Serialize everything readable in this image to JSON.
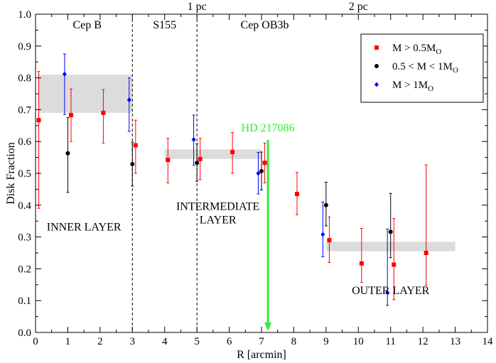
{
  "chart_data": {
    "type": "scatter",
    "xlabel": "R [arcmin]",
    "ylabel": "Disk Fraction",
    "xlim": [
      0,
      14
    ],
    "ylim": [
      0.0,
      1.0
    ],
    "xticks": [
      "0",
      "1",
      "2",
      "3",
      "4",
      "5",
      "6",
      "7",
      "8",
      "9",
      "10",
      "11",
      "12",
      "13",
      "14"
    ],
    "yticks": [
      "0.0",
      "0.1",
      "0.2",
      "0.3",
      "0.4",
      "0.5",
      "0.6",
      "0.7",
      "0.8",
      "0.9",
      "1.0"
    ],
    "top_labels": [
      {
        "text": "1 pc",
        "x": 5
      },
      {
        "text": "2 pc",
        "x": 10
      }
    ],
    "region_labels": [
      {
        "text": "Cep B",
        "x": 1.6
      },
      {
        "text": "S155",
        "x": 4.0
      },
      {
        "text": "Cep OB3b",
        "x": 7.1
      }
    ],
    "region_dividers": [
      3.0,
      5.0
    ],
    "layer_labels": [
      {
        "lines": [
          "INNER LAYER"
        ],
        "x": 1.5,
        "y": 0.32
      },
      {
        "lines": [
          "INTERMEDIATE",
          "LAYER"
        ],
        "x": 5.65,
        "y": 0.385
      },
      {
        "lines": [
          "OUTER LAYER"
        ],
        "x": 11.0,
        "y": 0.12
      }
    ],
    "shaded_bands": [
      {
        "x0": 0.1,
        "x1": 3.0,
        "y0": 0.69,
        "y1": 0.81
      },
      {
        "x0": 4.0,
        "x1": 7.0,
        "y0": 0.545,
        "y1": 0.575
      },
      {
        "x0": 9.0,
        "x1": 13.0,
        "y0": 0.255,
        "y1": 0.285
      }
    ],
    "annotation": {
      "text": "HD 217086",
      "x": 7.2,
      "y_top": 0.605,
      "y_bottom": 0.0,
      "color": "#33ee33"
    },
    "series": [
      {
        "name": "M > 0.5M",
        "name_sub": "O",
        "color": "#ff0000",
        "marker": "square",
        "points": [
          {
            "x": 0.1,
            "y": 0.667,
            "lo": 0.39,
            "hi": 0.82
          },
          {
            "x": 1.1,
            "y": 0.683,
            "lo": 0.6,
            "hi": 0.765
          },
          {
            "x": 2.1,
            "y": 0.69,
            "lo": 0.595,
            "hi": 0.763
          },
          {
            "x": 3.1,
            "y": 0.588,
            "lo": 0.5,
            "hi": 0.667
          },
          {
            "x": 4.1,
            "y": 0.542,
            "lo": 0.47,
            "hi": 0.61
          },
          {
            "x": 5.1,
            "y": 0.545,
            "lo": 0.48,
            "hi": 0.61
          },
          {
            "x": 6.1,
            "y": 0.567,
            "lo": 0.5,
            "hi": 0.628
          },
          {
            "x": 7.1,
            "y": 0.533,
            "lo": 0.47,
            "hi": 0.595
          },
          {
            "x": 8.1,
            "y": 0.435,
            "lo": 0.37,
            "hi": 0.503
          },
          {
            "x": 9.1,
            "y": 0.29,
            "lo": 0.22,
            "hi": 0.363
          },
          {
            "x": 10.1,
            "y": 0.217,
            "lo": 0.157,
            "hi": 0.327
          },
          {
            "x": 11.1,
            "y": 0.213,
            "lo": 0.103,
            "hi": 0.358
          },
          {
            "x": 12.1,
            "y": 0.25,
            "lo": 0.148,
            "hi": 0.527
          }
        ]
      },
      {
        "name": "0.5 < M < 1M",
        "name_sub": "O",
        "color": "#000000",
        "marker": "circle",
        "points": [
          {
            "x": 1.0,
            "y": 0.563,
            "lo": 0.44,
            "hi": 0.675
          },
          {
            "x": 3.0,
            "y": 0.529,
            "lo": 0.46,
            "hi": 0.598
          },
          {
            "x": 5.0,
            "y": 0.533,
            "lo": 0.475,
            "hi": 0.593
          },
          {
            "x": 7.0,
            "y": 0.507,
            "lo": 0.448,
            "hi": 0.567
          },
          {
            "x": 9.0,
            "y": 0.4,
            "lo": 0.335,
            "hi": 0.472
          },
          {
            "x": 11.0,
            "y": 0.316,
            "lo": 0.235,
            "hi": 0.437
          }
        ]
      },
      {
        "name": "M > 1M",
        "name_sub": "O",
        "color": "#0000ff",
        "marker": "diamond",
        "points": [
          {
            "x": 0.9,
            "y": 0.812,
            "lo": 0.685,
            "hi": 0.875
          },
          {
            "x": 2.9,
            "y": 0.731,
            "lo": 0.632,
            "hi": 0.8
          },
          {
            "x": 4.9,
            "y": 0.606,
            "lo": 0.525,
            "hi": 0.683
          },
          {
            "x": 6.9,
            "y": 0.5,
            "lo": 0.435,
            "hi": 0.566
          },
          {
            "x": 8.9,
            "y": 0.308,
            "lo": 0.238,
            "hi": 0.41
          },
          {
            "x": 10.9,
            "y": 0.125,
            "lo": 0.085,
            "hi": 0.325
          }
        ]
      }
    ]
  }
}
